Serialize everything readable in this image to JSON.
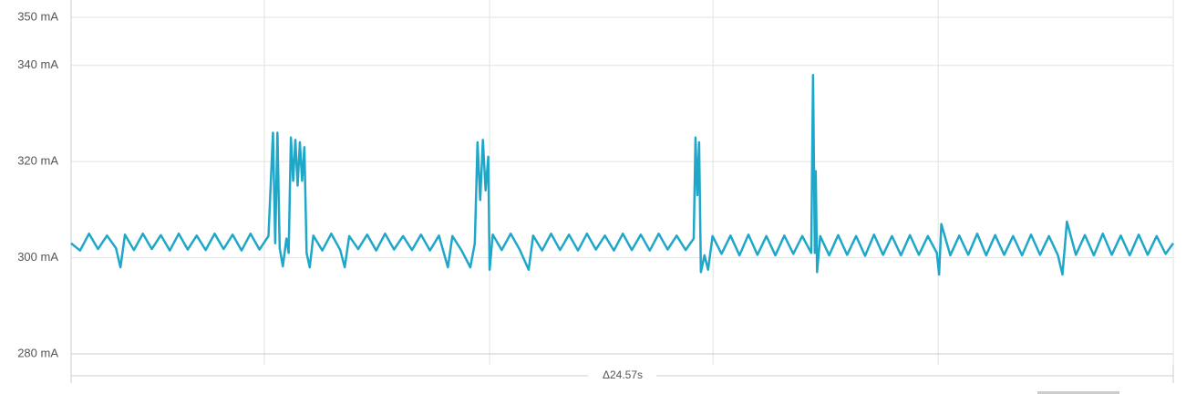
{
  "chart_data": {
    "type": "line",
    "yticks": [
      {
        "value": 280,
        "label": "280 mA"
      },
      {
        "value": 300,
        "label": "300 mA"
      },
      {
        "value": 320,
        "label": "320 mA"
      },
      {
        "value": 340,
        "label": "340 mA"
      },
      {
        "value": 350,
        "label": "350 mA"
      }
    ],
    "ylim": [
      280,
      350
    ],
    "xlim": [
      0,
      24.57
    ],
    "xticks": [
      4.31,
      9.33,
      14.31,
      19.33
    ],
    "grid": true,
    "span_label": "Δ24.57s",
    "series": [
      {
        "color": "#1fa7c9",
        "x": [
          0.0,
          0.2,
          0.4,
          0.6,
          0.8,
          1.0,
          1.1,
          1.2,
          1.4,
          1.6,
          1.8,
          2.0,
          2.2,
          2.4,
          2.6,
          2.8,
          3.0,
          3.2,
          3.4,
          3.6,
          3.8,
          4.0,
          4.2,
          4.4,
          4.5,
          4.55,
          4.6,
          4.65,
          4.72,
          4.8,
          4.85,
          4.9,
          4.95,
          5.0,
          5.05,
          5.1,
          5.15,
          5.2,
          5.25,
          5.32,
          5.4,
          5.6,
          5.8,
          6.0,
          6.1,
          6.2,
          6.4,
          6.6,
          6.8,
          7.0,
          7.2,
          7.4,
          7.6,
          7.8,
          8.0,
          8.2,
          8.4,
          8.5,
          8.7,
          8.9,
          9.0,
          9.06,
          9.12,
          9.18,
          9.24,
          9.3,
          9.33,
          9.4,
          9.6,
          9.8,
          10.0,
          10.2,
          10.3,
          10.5,
          10.7,
          10.9,
          11.1,
          11.3,
          11.5,
          11.7,
          11.9,
          12.1,
          12.3,
          12.5,
          12.7,
          12.9,
          13.1,
          13.3,
          13.5,
          13.7,
          13.88,
          13.92,
          13.96,
          14.0,
          14.04,
          14.12,
          14.2,
          14.3,
          14.5,
          14.7,
          14.9,
          15.1,
          15.3,
          15.5,
          15.7,
          15.9,
          16.1,
          16.3,
          16.5,
          16.54,
          16.58,
          16.6,
          16.63,
          16.7,
          16.9,
          17.1,
          17.3,
          17.5,
          17.7,
          17.9,
          18.1,
          18.3,
          18.5,
          18.7,
          18.9,
          19.1,
          19.3,
          19.35,
          19.4,
          19.6,
          19.8,
          20.0,
          20.2,
          20.4,
          20.6,
          20.8,
          21.0,
          21.2,
          21.4,
          21.6,
          21.8,
          22.0,
          22.1,
          22.2,
          22.4,
          22.6,
          22.8,
          23.0,
          23.2,
          23.4,
          23.6,
          23.8,
          24.0,
          24.2,
          24.4,
          24.57
        ],
        "values": [
          303,
          301.5,
          305,
          301.8,
          304.6,
          302,
          298,
          304.8,
          301.6,
          305,
          301.8,
          304.7,
          301.5,
          305,
          301.7,
          304.6,
          301.6,
          305,
          301.8,
          304.8,
          301.5,
          305,
          301.7,
          304.5,
          326,
          303,
          326,
          302,
          298.2,
          304,
          301,
          325,
          316,
          324.5,
          315,
          324,
          316,
          323,
          301,
          298,
          304.6,
          301.5,
          305,
          301.6,
          298,
          304.5,
          301.8,
          304.8,
          301.5,
          305,
          301.7,
          304.5,
          301.6,
          304.8,
          301.5,
          304.6,
          298,
          304.5,
          301.6,
          298,
          303,
          324,
          312,
          324.5,
          314,
          321,
          297.5,
          304.8,
          301.6,
          305,
          301.7,
          297.5,
          304.6,
          301.5,
          305,
          301.6,
          304.8,
          301.5,
          305,
          301.7,
          304.6,
          301.5,
          305,
          301.6,
          304.8,
          301.5,
          305,
          301.7,
          304.6,
          301.6,
          304,
          325,
          313,
          324,
          297,
          300.5,
          297.5,
          304.5,
          300.8,
          304.6,
          300.5,
          304.8,
          300.6,
          304.5,
          300.5,
          304.6,
          300.8,
          304.5,
          301,
          338,
          301,
          318,
          297,
          304.5,
          300.5,
          304.7,
          300.6,
          304.5,
          300.4,
          304.8,
          300.6,
          304.5,
          300.5,
          304.7,
          300.6,
          304.5,
          301,
          296.5,
          307,
          300.5,
          304.6,
          300.6,
          305,
          300.5,
          304.7,
          300.6,
          304.5,
          300.5,
          304.8,
          300.6,
          304.5,
          300.5,
          296.5,
          307.5,
          300.6,
          304.7,
          300.5,
          305,
          300.6,
          304.6,
          300.5,
          304.8,
          300.6,
          304.5,
          300.8,
          303
        ]
      }
    ]
  }
}
